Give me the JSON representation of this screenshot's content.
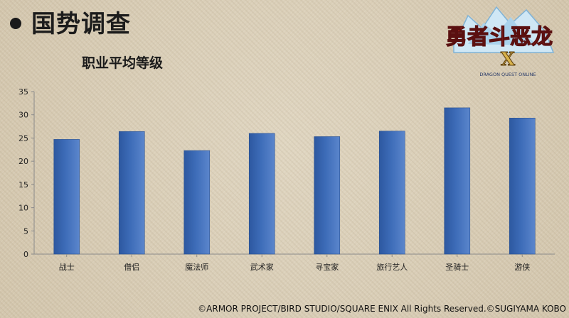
{
  "header": {
    "title": "国势调查"
  },
  "logo": {
    "text": "勇者斗恶龙",
    "numeral": "X",
    "subtitle": "DRAGON QUEST ONLINE"
  },
  "chart_data": {
    "type": "bar",
    "title": "职业平均等级",
    "categories": [
      "战士",
      "僧侣",
      "魔法师",
      "武术家",
      "寻宝家",
      "旅行艺人",
      "圣骑士",
      "游侠"
    ],
    "values": [
      24.7,
      26.4,
      22.3,
      26.0,
      25.3,
      26.5,
      31.5,
      29.3
    ],
    "ylim": [
      0,
      35
    ],
    "yticks": [
      0,
      5,
      10,
      15,
      20,
      25,
      30,
      35
    ],
    "grid": false,
    "legend": "none",
    "bar_color": "#3d6cb8"
  },
  "footer": {
    "copyright": "©ARMOR PROJECT/BIRD STUDIO/SQUARE ENIX All Rights Reserved.©SUGIYAMA KOBO"
  }
}
